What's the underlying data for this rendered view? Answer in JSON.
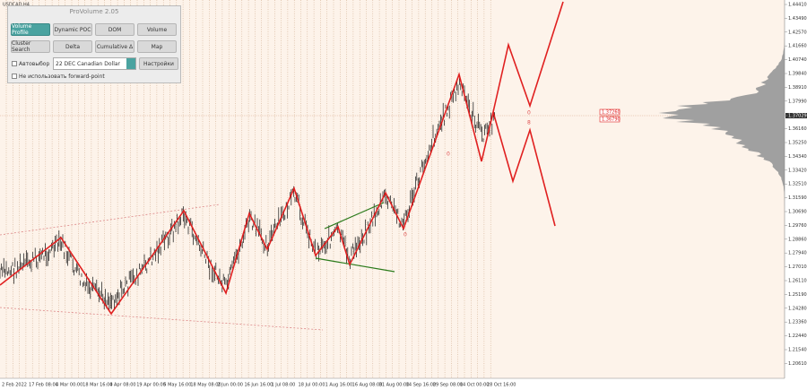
{
  "symbol": "USDCAD,H4",
  "panel": {
    "title": "ProVolume 2.05",
    "buttons": [
      "Volume Profile",
      "Dynamic POC",
      "DOM",
      "Volume",
      "Cluster Search",
      "Delta",
      "Cumulative Δ",
      "Map"
    ],
    "auto_select": "Автовыбор",
    "instrument": "22 DEC Canadian Dollar",
    "settings": "Настройки",
    "forward_point": "Не использовать forward-point"
  },
  "price_axis": [
    "1.44410",
    "1.43490",
    "1.42570",
    "1.41660",
    "1.40740",
    "1.39840",
    "1.38910",
    "1.37990",
    "1.37029",
    "1.36160",
    "1.35250",
    "1.34340",
    "1.33420",
    "1.32510",
    "1.31590",
    "1.30690",
    "1.29760",
    "1.28860",
    "1.27940",
    "1.27010",
    "1.26110",
    "1.25190",
    "1.24280",
    "1.23360",
    "1.22440",
    "1.21540",
    "1.20610"
  ],
  "levels": [
    "1.37260",
    "1.36790"
  ],
  "time_axis": [
    "2 Feb 2022",
    "17 Feb 08:00",
    "4 Mar 00:00",
    "18 Mar 16:00",
    "4 Apr 08:00",
    "19 Apr 00:00",
    "5 May 16:00",
    "18 May 08:00",
    "2 Jun 00:00",
    "16 Jun 16:00",
    "1 Jul 08:00",
    "18 Jul 00:00",
    "1 Aug 16:00",
    "16 Aug 08:00",
    "31 Aug 00:00",
    "14 Sep 16:00",
    "29 Sep 08:00",
    "14 Oct 00:00",
    "28 Oct 16:00"
  ],
  "wave_labels": [
    "0",
    "0",
    "0",
    "8"
  ]
}
